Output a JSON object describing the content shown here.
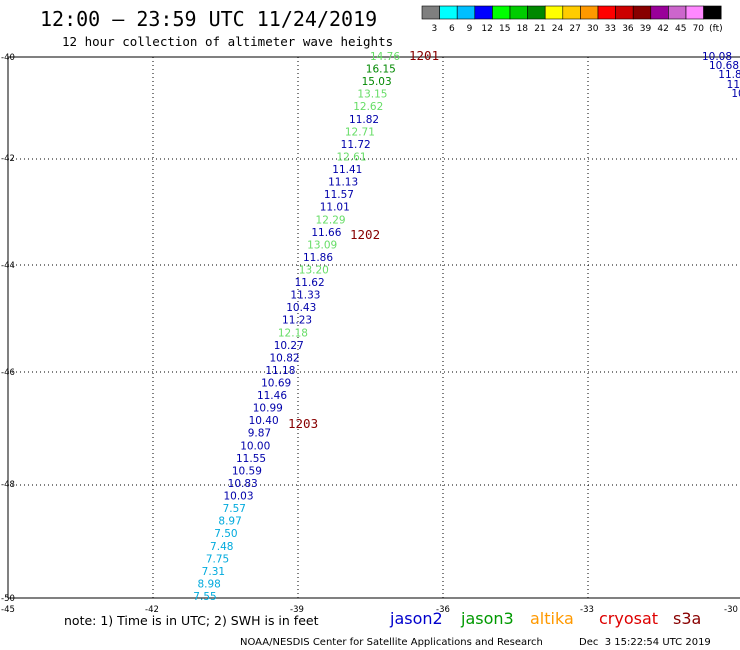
{
  "header": {
    "title": "12:00 – 23:59 UTC 11/24/2019",
    "subtitle": "12 hour collection of altimeter wave heights"
  },
  "legend": {
    "colors": [
      "#7f7f7f",
      "#00ffff",
      "#00bfff",
      "#0000ff",
      "#00ff00",
      "#00cc00",
      "#008800",
      "#ffff00",
      "#ffcc00",
      "#ff9900",
      "#ff0000",
      "#cc0000",
      "#880000",
      "#990099",
      "#cc66cc",
      "#ff88ff",
      "#000000"
    ],
    "labels": [
      "3",
      "6",
      "9",
      "12",
      "15",
      "18",
      "21",
      "24",
      "27",
      "30",
      "33",
      "36",
      "39",
      "42",
      "45",
      "70",
      "(ft)"
    ]
  },
  "axes": {
    "y_ticks": [
      "-40",
      "-42",
      "-44",
      "-46",
      "-48",
      "-50"
    ],
    "x_ticks": [
      "-45",
      "-42",
      "-39",
      "-36",
      "-33",
      "-30"
    ]
  },
  "time_labels": [
    "1201",
    "1202",
    "1203"
  ],
  "observations": [
    {
      "v": "14.76",
      "c": "#66dd66"
    },
    {
      "v": "16.15",
      "c": "#008800"
    },
    {
      "v": "15.03",
      "c": "#008800"
    },
    {
      "v": "13.15",
      "c": "#66dd66"
    },
    {
      "v": "12.62",
      "c": "#66dd66"
    },
    {
      "v": "11.82",
      "c": "#0000aa"
    },
    {
      "v": "12.71",
      "c": "#66dd66"
    },
    {
      "v": "11.72",
      "c": "#0000aa"
    },
    {
      "v": "12.61",
      "c": "#66dd66"
    },
    {
      "v": "11.41",
      "c": "#0000aa"
    },
    {
      "v": "11.13",
      "c": "#0000aa"
    },
    {
      "v": "11.57",
      "c": "#0000aa"
    },
    {
      "v": "11.01",
      "c": "#0000aa"
    },
    {
      "v": "12.29",
      "c": "#66dd66"
    },
    {
      "v": "11.66",
      "c": "#0000aa"
    },
    {
      "v": "13.09",
      "c": "#66dd66"
    },
    {
      "v": "11.86",
      "c": "#0000aa"
    },
    {
      "v": "13.20",
      "c": "#66dd66"
    },
    {
      "v": "11.62",
      "c": "#0000aa"
    },
    {
      "v": "11.33",
      "c": "#0000aa"
    },
    {
      "v": "10.43",
      "c": "#0000aa"
    },
    {
      "v": "11.23",
      "c": "#0000aa"
    },
    {
      "v": "12.18",
      "c": "#66dd66"
    },
    {
      "v": "10.27",
      "c": "#0000aa"
    },
    {
      "v": "10.82",
      "c": "#0000aa"
    },
    {
      "v": "11.18",
      "c": "#0000aa"
    },
    {
      "v": "10.69",
      "c": "#0000aa"
    },
    {
      "v": "11.46",
      "c": "#0000aa"
    },
    {
      "v": "10.99",
      "c": "#0000aa"
    },
    {
      "v": "10.40",
      "c": "#0000aa"
    },
    {
      "v": "9.87",
      "c": "#0000aa"
    },
    {
      "v": "10.00",
      "c": "#0000aa"
    },
    {
      "v": "11.55",
      "c": "#0000aa"
    },
    {
      "v": "10.59",
      "c": "#0000aa"
    },
    {
      "v": "10.83",
      "c": "#0000aa"
    },
    {
      "v": "10.03",
      "c": "#0000aa"
    },
    {
      "v": "7.57",
      "c": "#00aadd"
    },
    {
      "v": "8.97",
      "c": "#00aadd"
    },
    {
      "v": "7.50",
      "c": "#00aadd"
    },
    {
      "v": "7.48",
      "c": "#00aadd"
    },
    {
      "v": "7.75",
      "c": "#00aadd"
    },
    {
      "v": "7.31",
      "c": "#00aadd"
    },
    {
      "v": "8.98",
      "c": "#00aadd"
    },
    {
      "v": "7.55",
      "c": "#00aadd"
    }
  ],
  "edge_observations": [
    {
      "v": "10.08",
      "c": "#0000aa"
    },
    {
      "v": "10.68",
      "c": "#0000aa"
    },
    {
      "v": "11.8",
      "c": "#0000aa"
    },
    {
      "v": "11.",
      "c": "#0000aa"
    },
    {
      "v": "10",
      "c": "#0000aa"
    }
  ],
  "footer": {
    "note": "note: 1) Time is in UTC; 2) SWH is in feet",
    "satellites": [
      {
        "name": "jason2",
        "color": "#0000cc"
      },
      {
        "name": "jason3",
        "color": "#009900"
      },
      {
        "name": "altika",
        "color": "#ff9900"
      },
      {
        "name": "cryosat",
        "color": "#dd0000"
      },
      {
        "name": "s3a",
        "color": "#880000"
      }
    ],
    "credit": "NOAA/NESDIS Center for Satellite Applications and Research",
    "timestamp": "Dec  3 15:22:54 UTC 2019"
  }
}
